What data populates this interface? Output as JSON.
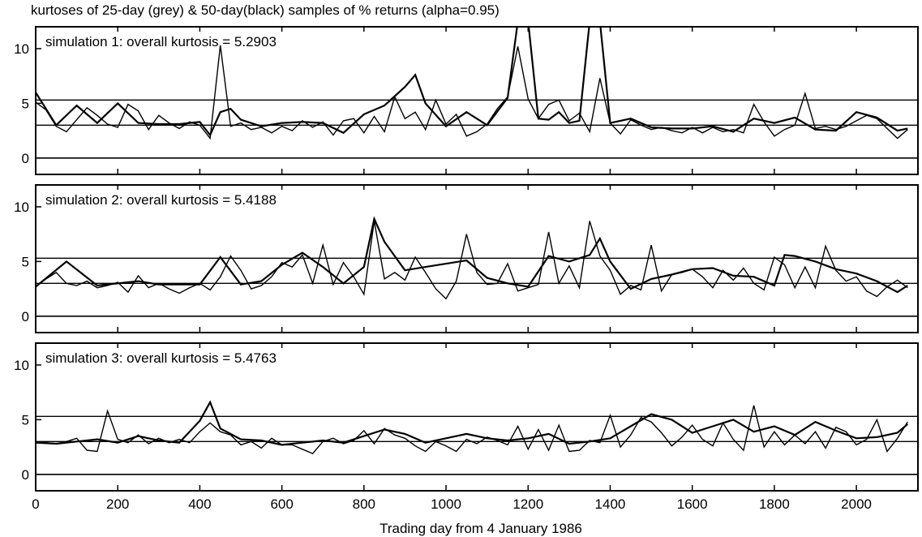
{
  "chart_data": {
    "type": "line",
    "title": "kurtoses of 25-day (grey) & 50-day(black) samples of % returns (alpha=0.95)",
    "xlabel": "Trading day from 4 January 1986",
    "ylabel": "",
    "xlim": [
      0,
      2150
    ],
    "ylim": [
      -1.5,
      12
    ],
    "xticks": [
      "0",
      "200",
      "400",
      "600",
      "800",
      "1000",
      "1200",
      "1400",
      "1600",
      "1800",
      "2000"
    ],
    "yticks": [
      "0",
      "5",
      "10"
    ],
    "reference_lines": [
      0,
      3,
      5.3
    ],
    "grid": false,
    "legend": "none",
    "colors": {
      "grey_series": "#000000",
      "black_series": "#000000",
      "axes": "#000000"
    },
    "panels": [
      {
        "annotation": "simulation 1: overall kurtosis = 5.2903",
        "series": [
          {
            "name": "25-day (grey)",
            "x": [
              0,
              25,
              50,
              75,
              100,
              125,
              150,
              175,
              200,
              225,
              250,
              275,
              300,
              325,
              350,
              375,
              400,
              425,
              450,
              475,
              500,
              525,
              550,
              575,
              600,
              625,
              650,
              675,
              700,
              725,
              750,
              775,
              800,
              825,
              850,
              875,
              900,
              925,
              950,
              975,
              1000,
              1025,
              1050,
              1075,
              1100,
              1125,
              1150,
              1175,
              1200,
              1225,
              1250,
              1275,
              1300,
              1325,
              1350,
              1375,
              1400,
              1425,
              1450,
              1475,
              1500,
              1525,
              1550,
              1575,
              1600,
              1625,
              1650,
              1675,
              1700,
              1725,
              1750,
              1775,
              1800,
              1825,
              1850,
              1875,
              1900,
              1925,
              1950,
              1975,
              2000,
              2025,
              2050,
              2075,
              2100,
              2125
            ],
            "y": [
              5.1,
              4.4,
              2.9,
              2.4,
              3.5,
              4.6,
              3.9,
              3.1,
              2.8,
              4.9,
              4.3,
              2.6,
              3.9,
              3.2,
              2.7,
              3.3,
              3.0,
              1.8,
              10.3,
              2.9,
              3.2,
              2.6,
              2.8,
              2.3,
              2.9,
              2.5,
              3.4,
              2.8,
              3.3,
              2.1,
              3.4,
              3.6,
              2.3,
              3.8,
              2.4,
              5.6,
              3.6,
              4.2,
              2.6,
              5.3,
              3.1,
              4.0,
              2.0,
              2.4,
              3.1,
              4.5,
              5.6,
              10.2,
              5.4,
              3.6,
              4.9,
              5.3,
              3.4,
              4.1,
              2.4,
              7.3,
              3.2,
              2.2,
              3.5,
              3.0,
              2.6,
              2.8,
              2.5,
              2.3,
              2.8,
              2.3,
              2.8,
              2.4,
              2.6,
              2.3,
              4.9,
              3.3,
              2.0,
              2.6,
              3.0,
              5.9,
              2.7,
              2.9,
              2.6,
              2.9,
              3.4,
              3.9,
              3.6,
              2.7,
              1.8,
              2.6
            ]
          },
          {
            "name": "50-day (black)",
            "x": [
              0,
              50,
              100,
              150,
              200,
              250,
              300,
              350,
              400,
              425,
              450,
              475,
              500,
              550,
              600,
              650,
              700,
              750,
              800,
              850,
              900,
              925,
              950,
              1000,
              1050,
              1100,
              1150,
              1175,
              1200,
              1225,
              1250,
              1275,
              1300,
              1325,
              1350,
              1375,
              1400,
              1450,
              1500,
              1550,
              1600,
              1650,
              1700,
              1750,
              1800,
              1850,
              1900,
              1950,
              2000,
              2050,
              2100,
              2125
            ],
            "y": [
              6.0,
              3.0,
              4.8,
              3.2,
              5.0,
              3.2,
              3.1,
              3.1,
              3.3,
              2.1,
              4.2,
              4.5,
              3.5,
              2.9,
              3.2,
              3.3,
              3.2,
              2.3,
              4.0,
              4.8,
              6.5,
              7.6,
              5.0,
              2.9,
              4.2,
              3.0,
              5.5,
              12.5,
              12.5,
              3.6,
              3.5,
              4.2,
              3.2,
              3.4,
              12.5,
              12.5,
              3.2,
              3.6,
              2.8,
              2.7,
              2.7,
              2.9,
              2.4,
              3.6,
              3.2,
              3.7,
              2.6,
              2.5,
              4.2,
              3.7,
              2.5,
              2.7
            ]
          }
        ]
      },
      {
        "annotation": "simulation 2: overall kurtosis = 5.4188",
        "series": [
          {
            "name": "25-day (grey)",
            "x": [
              0,
              25,
              50,
              75,
              100,
              125,
              150,
              175,
              200,
              225,
              250,
              275,
              300,
              325,
              350,
              375,
              400,
              425,
              450,
              475,
              500,
              525,
              550,
              575,
              600,
              625,
              650,
              675,
              700,
              725,
              750,
              775,
              800,
              825,
              850,
              875,
              900,
              925,
              950,
              975,
              1000,
              1025,
              1050,
              1075,
              1100,
              1125,
              1150,
              1175,
              1200,
              1225,
              1250,
              1275,
              1300,
              1325,
              1350,
              1375,
              1400,
              1425,
              1450,
              1475,
              1500,
              1525,
              1550,
              1575,
              1600,
              1625,
              1650,
              1675,
              1700,
              1725,
              1750,
              1775,
              1800,
              1825,
              1850,
              1875,
              1900,
              1925,
              1950,
              1975,
              2000,
              2025,
              2050,
              2075,
              2100,
              2125
            ],
            "y": [
              2.7,
              3.4,
              4.0,
              3.0,
              2.8,
              3.2,
              2.6,
              2.8,
              3.1,
              2.2,
              3.7,
              2.6,
              3.0,
              2.5,
              2.1,
              2.6,
              3.0,
              2.4,
              3.6,
              5.5,
              4.2,
              2.5,
              2.8,
              3.6,
              4.9,
              4.5,
              5.6,
              3.0,
              6.5,
              2.9,
              4.9,
              3.6,
              2.0,
              8.7,
              3.4,
              4.0,
              3.3,
              5.4,
              4.0,
              2.5,
              1.6,
              3.2,
              7.5,
              4.0,
              2.9,
              3.0,
              4.8,
              2.3,
              2.6,
              2.9,
              7.7,
              3.0,
              4.6,
              2.6,
              8.7,
              5.5,
              4.2,
              2.0,
              2.8,
              2.4,
              6.5,
              2.3,
              3.8,
              4.0,
              4.3,
              3.6,
              2.6,
              4.2,
              3.3,
              4.4,
              3.0,
              2.4,
              5.4,
              4.7,
              2.6,
              4.5,
              2.6,
              6.4,
              4.2,
              3.2,
              3.6,
              2.3,
              1.8,
              2.7,
              3.3,
              2.6
            ]
          },
          {
            "name": "50-day (black)",
            "x": [
              0,
              75,
              150,
              200,
              250,
              300,
              400,
              450,
              500,
              550,
              600,
              650,
              700,
              750,
              800,
              825,
              850,
              900,
              950,
              1000,
              1050,
              1100,
              1150,
              1200,
              1250,
              1300,
              1350,
              1375,
              1400,
              1450,
              1500,
              1550,
              1600,
              1650,
              1700,
              1750,
              1800,
              1825,
              1850,
              1900,
              1950,
              2000,
              2050,
              2100,
              2125
            ],
            "y": [
              2.7,
              5.0,
              2.8,
              3.0,
              3.2,
              2.9,
              2.9,
              5.4,
              2.9,
              3.2,
              4.7,
              5.8,
              4.5,
              3.0,
              4.5,
              8.9,
              6.8,
              4.2,
              4.5,
              4.8,
              5.1,
              3.5,
              3.0,
              2.7,
              5.5,
              5.0,
              5.6,
              7.1,
              5.0,
              2.5,
              3.4,
              3.8,
              4.3,
              4.4,
              3.7,
              3.6,
              2.8,
              5.6,
              5.5,
              5.0,
              4.3,
              3.9,
              3.2,
              2.2,
              2.8
            ]
          }
        ]
      },
      {
        "annotation": "simulation 3: overall kurtosis = 5.4763",
        "series": [
          {
            "name": "25-day (grey)",
            "x": [
              0,
              25,
              50,
              75,
              100,
              125,
              150,
              175,
              200,
              225,
              250,
              275,
              300,
              325,
              350,
              375,
              400,
              425,
              450,
              475,
              500,
              525,
              550,
              575,
              600,
              625,
              650,
              675,
              700,
              725,
              750,
              775,
              800,
              825,
              850,
              875,
              900,
              925,
              950,
              975,
              1000,
              1025,
              1050,
              1075,
              1100,
              1125,
              1150,
              1175,
              1200,
              1225,
              1250,
              1275,
              1300,
              1325,
              1350,
              1375,
              1400,
              1425,
              1450,
              1475,
              1500,
              1525,
              1550,
              1575,
              1600,
              1625,
              1650,
              1675,
              1700,
              1725,
              1750,
              1775,
              1800,
              1825,
              1850,
              1875,
              1900,
              1925,
              1950,
              1975,
              2000,
              2025,
              2050,
              2075,
              2100,
              2125
            ],
            "y": [
              3.0,
              2.9,
              2.8,
              3.0,
              3.3,
              2.2,
              2.1,
              5.8,
              3.2,
              2.9,
              3.6,
              2.8,
              3.3,
              2.9,
              3.2,
              2.9,
              3.9,
              4.7,
              3.9,
              3.6,
              2.7,
              3.0,
              2.4,
              3.3,
              2.7,
              2.7,
              2.3,
              1.9,
              3.0,
              3.3,
              2.8,
              3.1,
              4.0,
              2.8,
              4.2,
              3.6,
              3.3,
              2.6,
              2.1,
              3.0,
              2.6,
              2.1,
              3.2,
              2.8,
              3.4,
              3.1,
              2.7,
              4.4,
              2.3,
              4.1,
              2.2,
              4.5,
              2.1,
              2.2,
              3.1,
              2.9,
              5.4,
              2.5,
              3.6,
              5.2,
              4.8,
              3.8,
              2.6,
              3.4,
              4.5,
              3.2,
              2.6,
              4.7,
              3.2,
              2.2,
              6.3,
              2.5,
              3.9,
              2.7,
              3.6,
              2.8,
              3.9,
              2.4,
              4.3,
              3.9,
              2.7,
              3.2,
              5.0,
              2.1,
              3.3,
              4.8
            ]
          },
          {
            "name": "50-day (black)",
            "x": [
              0,
              50,
              100,
              150,
              200,
              250,
              300,
              350,
              400,
              425,
              450,
              500,
              550,
              600,
              650,
              700,
              750,
              800,
              850,
              900,
              950,
              1000,
              1050,
              1100,
              1150,
              1200,
              1250,
              1300,
              1350,
              1400,
              1450,
              1500,
              1550,
              1600,
              1650,
              1700,
              1750,
              1800,
              1850,
              1900,
              1950,
              2000,
              2050,
              2100,
              2125
            ],
            "y": [
              2.9,
              2.8,
              3.0,
              3.2,
              2.9,
              3.5,
              3.1,
              2.9,
              4.9,
              6.6,
              4.2,
              3.2,
              3.1,
              2.7,
              2.9,
              3.1,
              2.9,
              3.5,
              4.1,
              3.7,
              2.9,
              3.3,
              3.7,
              3.3,
              3.1,
              3.3,
              3.7,
              2.8,
              3.0,
              3.3,
              4.4,
              5.5,
              5.0,
              3.8,
              4.4,
              5.0,
              3.9,
              4.4,
              3.6,
              4.8,
              4.0,
              3.3,
              3.4,
              3.8,
              4.6
            ]
          }
        ]
      }
    ]
  }
}
